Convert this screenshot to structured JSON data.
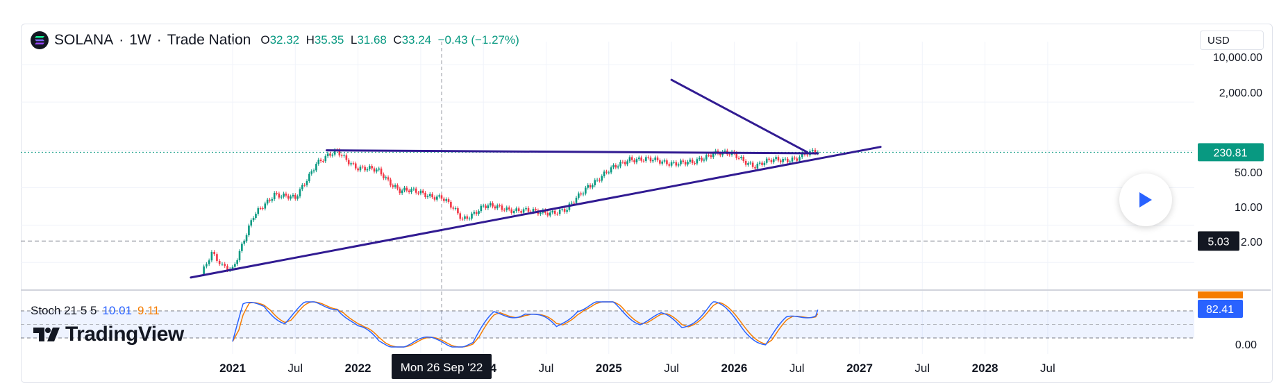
{
  "header": {
    "symbol": "SOLANA",
    "sep1": "·",
    "timeframe": "1W",
    "sep2": "·",
    "source": "Trade Nation",
    "o_label": "O",
    "o_value": "32.32",
    "h_label": "H",
    "h_value": "35.35",
    "l_label": "L",
    "l_value": "31.68",
    "c_label": "C",
    "c_value": "33.24",
    "change": "−0.43 (−1.27%)"
  },
  "currency": "USD",
  "price_axis": {
    "ticks": [
      "10,000.00",
      "2,000.00",
      "50.00",
      "10.00",
      "2.00"
    ],
    "last_price": "230.81",
    "horizontal_level": "5.03"
  },
  "stoch": {
    "name": "Stoch 21 5 5",
    "k_value": "10.01",
    "d_value": "9.11",
    "badge_value": "82.41",
    "zero_tick": "0.00"
  },
  "time_axis": {
    "labels": [
      "2021",
      "Jul",
      "2022",
      "Jul",
      "2024",
      "Jul",
      "2025",
      "Jul",
      "2026",
      "Jul",
      "2027",
      "Jul",
      "2028",
      "Jul"
    ],
    "crosshair_label": "Mon 26 Sep '22"
  },
  "brand": "TradingView",
  "colors": {
    "up": "#089981",
    "down": "#f23645",
    "trendline": "#311b92",
    "stoch_k": "#2962ff",
    "stoch_d": "#f57c00",
    "last_price_bg": "#089981",
    "level_bg": "#131722"
  },
  "chart_data": {
    "type": "candlestick",
    "title": "SOLANA · 1W · Trade Nation",
    "scale": "log",
    "x_range": [
      "2020-09",
      "2028-09"
    ],
    "y_range": [
      0.9,
      20000
    ],
    "series": [
      {
        "points": [
          [
            "2020-10",
            1.2
          ],
          [
            "2020-11",
            2.8
          ],
          [
            "2020-12",
            1.7
          ],
          [
            "2021-01",
            1.6
          ],
          [
            "2021-03",
            14
          ],
          [
            "2021-05",
            40
          ],
          [
            "2021-07",
            30
          ],
          [
            "2021-09",
            150
          ],
          [
            "2021-11",
            230
          ],
          [
            "2022-01",
            120
          ],
          [
            "2022-03",
            100
          ],
          [
            "2022-05",
            45
          ],
          [
            "2022-07",
            40
          ],
          [
            "2022-09",
            33
          ],
          [
            "2022-11",
            13
          ],
          [
            "2023-01",
            22
          ],
          [
            "2023-03",
            21
          ],
          [
            "2023-06",
            17
          ],
          [
            "2023-09",
            19
          ],
          [
            "2023-11",
            55
          ],
          [
            "2024-01",
            100
          ],
          [
            "2024-03",
            180
          ],
          [
            "2024-05",
            160
          ],
          [
            "2024-07",
            150
          ],
          [
            "2024-09",
            140
          ],
          [
            "2024-11",
            235
          ],
          [
            "2025-01",
            200
          ],
          [
            "2025-03",
            130
          ],
          [
            "2025-05",
            165
          ],
          [
            "2025-07",
            180
          ],
          [
            "2025-08",
            210
          ],
          [
            "2025-09",
            230.81
          ]
        ]
      }
    ],
    "trendlines": [
      {
        "from": [
          "2021-10",
          250
        ],
        "to": [
          "2025-09",
          220
        ]
      },
      {
        "from": [
          "2020-09",
          1.05
        ],
        "to": [
          "2026-03",
          290
        ]
      },
      {
        "from": [
          "2024-07",
          5200
        ],
        "to": [
          "2025-08",
          230
        ]
      }
    ],
    "horizontal_line": 5.03,
    "stochastic": {
      "name": "Stoch 21 5 5",
      "k": 10.01,
      "d": 9.11,
      "current": 82.41,
      "bands": [
        20,
        80
      ],
      "k_series": [
        [
          "2021-01",
          12
        ],
        [
          "2021-02",
          85
        ],
        [
          "2021-04",
          92
        ],
        [
          "2021-06",
          60
        ],
        [
          "2021-08",
          90
        ],
        [
          "2021-11",
          95
        ],
        [
          "2022-01",
          40
        ],
        [
          "2022-03",
          10
        ],
        [
          "2022-06",
          8
        ],
        [
          "2022-09",
          12
        ],
        [
          "2022-12",
          8
        ],
        [
          "2023-02",
          70
        ],
        [
          "2023-05",
          80
        ],
        [
          "2023-08",
          40
        ],
        [
          "2023-10",
          90
        ],
        [
          "2024-01",
          98
        ],
        [
          "2024-04",
          60
        ],
        [
          "2024-06",
          65
        ],
        [
          "2024-08",
          45
        ],
        [
          "2024-11",
          98
        ],
        [
          "2025-02",
          40
        ],
        [
          "2025-04",
          10
        ],
        [
          "2025-06",
          55
        ],
        [
          "2025-09",
          82.41
        ]
      ]
    }
  }
}
